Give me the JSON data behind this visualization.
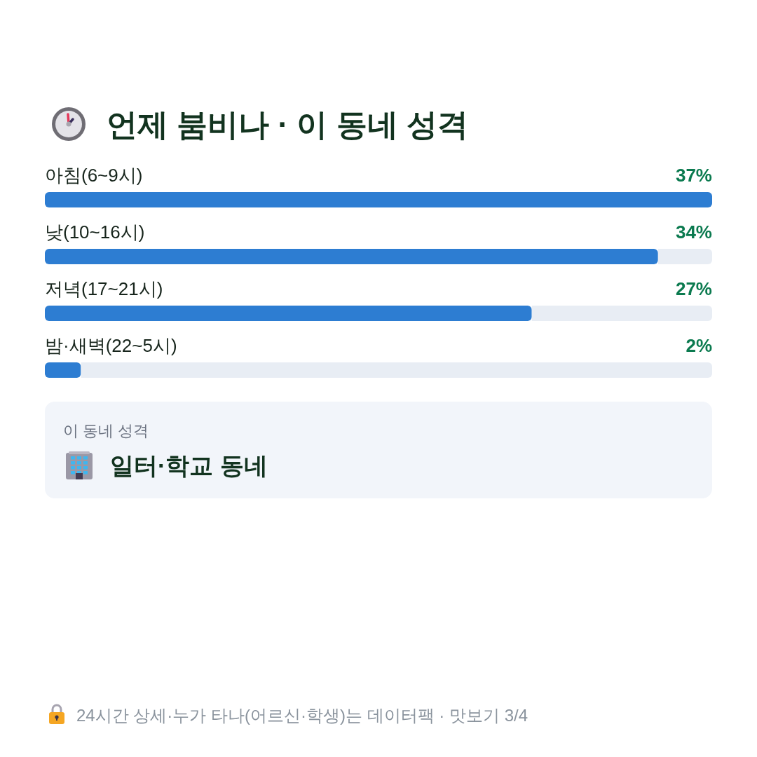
{
  "chart_data": {
    "type": "bar",
    "orientation": "horizontal",
    "title": "언제 붐비나 · 이 동네 성격",
    "categories": [
      "아침(6~9시)",
      "낮(10~16시)",
      "저녁(17~21시)",
      "밤·새벽(22~5시)"
    ],
    "values": [
      37,
      34,
      27,
      2
    ],
    "value_labels": [
      "37%",
      "34%",
      "27%",
      "2%"
    ],
    "color": "#2d7dd2",
    "annotations": [
      "이 동네 성격",
      "일터·학교 동네",
      "24시간 상세·누가 타나(어르신·학생)는 데이터팩 · 맛보기 3/4"
    ]
  }
}
